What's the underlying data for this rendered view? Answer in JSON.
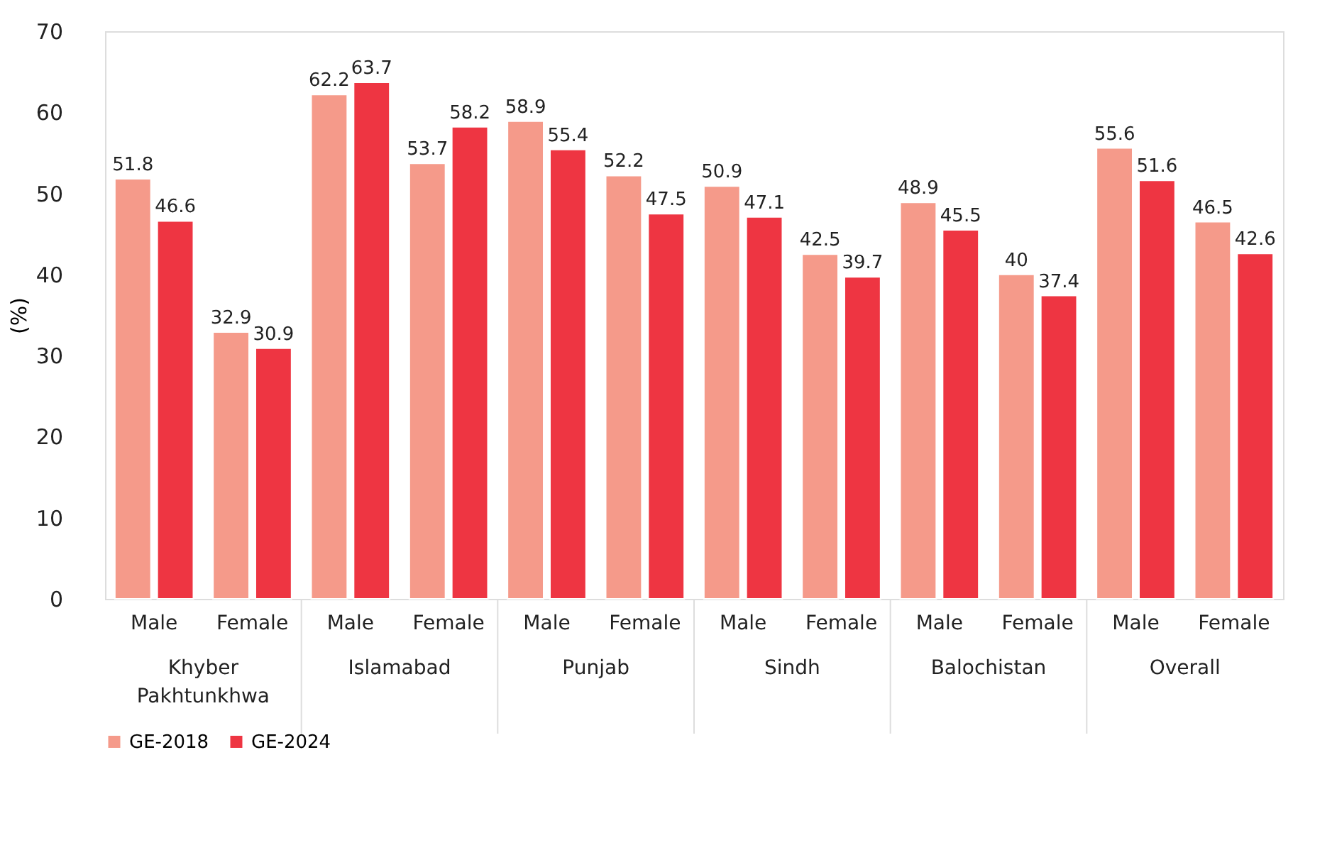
{
  "chart_data": {
    "type": "bar",
    "ylabel": "(%)",
    "categories": [
      "Male",
      "Female",
      "Male",
      "Female",
      "Male",
      "Female",
      "Male",
      "Female",
      "Male",
      "Female",
      "Male",
      "Female"
    ],
    "annotations": [
      "Khyber Pakhtunkhwa",
      "Islamabad",
      "Punjab",
      "Sindh",
      "Balochistan",
      "Overall"
    ],
    "series": [
      {
        "name": "GE-2018",
        "color": "#f59a8a",
        "values": [
          51.8,
          32.9,
          62.2,
          53.7,
          58.9,
          52.2,
          50.9,
          42.5,
          48.9,
          40,
          55.6,
          46.5
        ]
      },
      {
        "name": "GE-2024",
        "color": "#ee3542",
        "values": [
          46.6,
          30.9,
          63.7,
          58.2,
          55.4,
          47.5,
          47.1,
          39.7,
          45.5,
          37.4,
          51.6,
          42.6
        ]
      }
    ],
    "ylim": [
      0,
      70
    ],
    "yticks": [
      0,
      10,
      20,
      30,
      40,
      50,
      60,
      70
    ],
    "grid": false,
    "data_labels": true,
    "legend": "bottom"
  }
}
